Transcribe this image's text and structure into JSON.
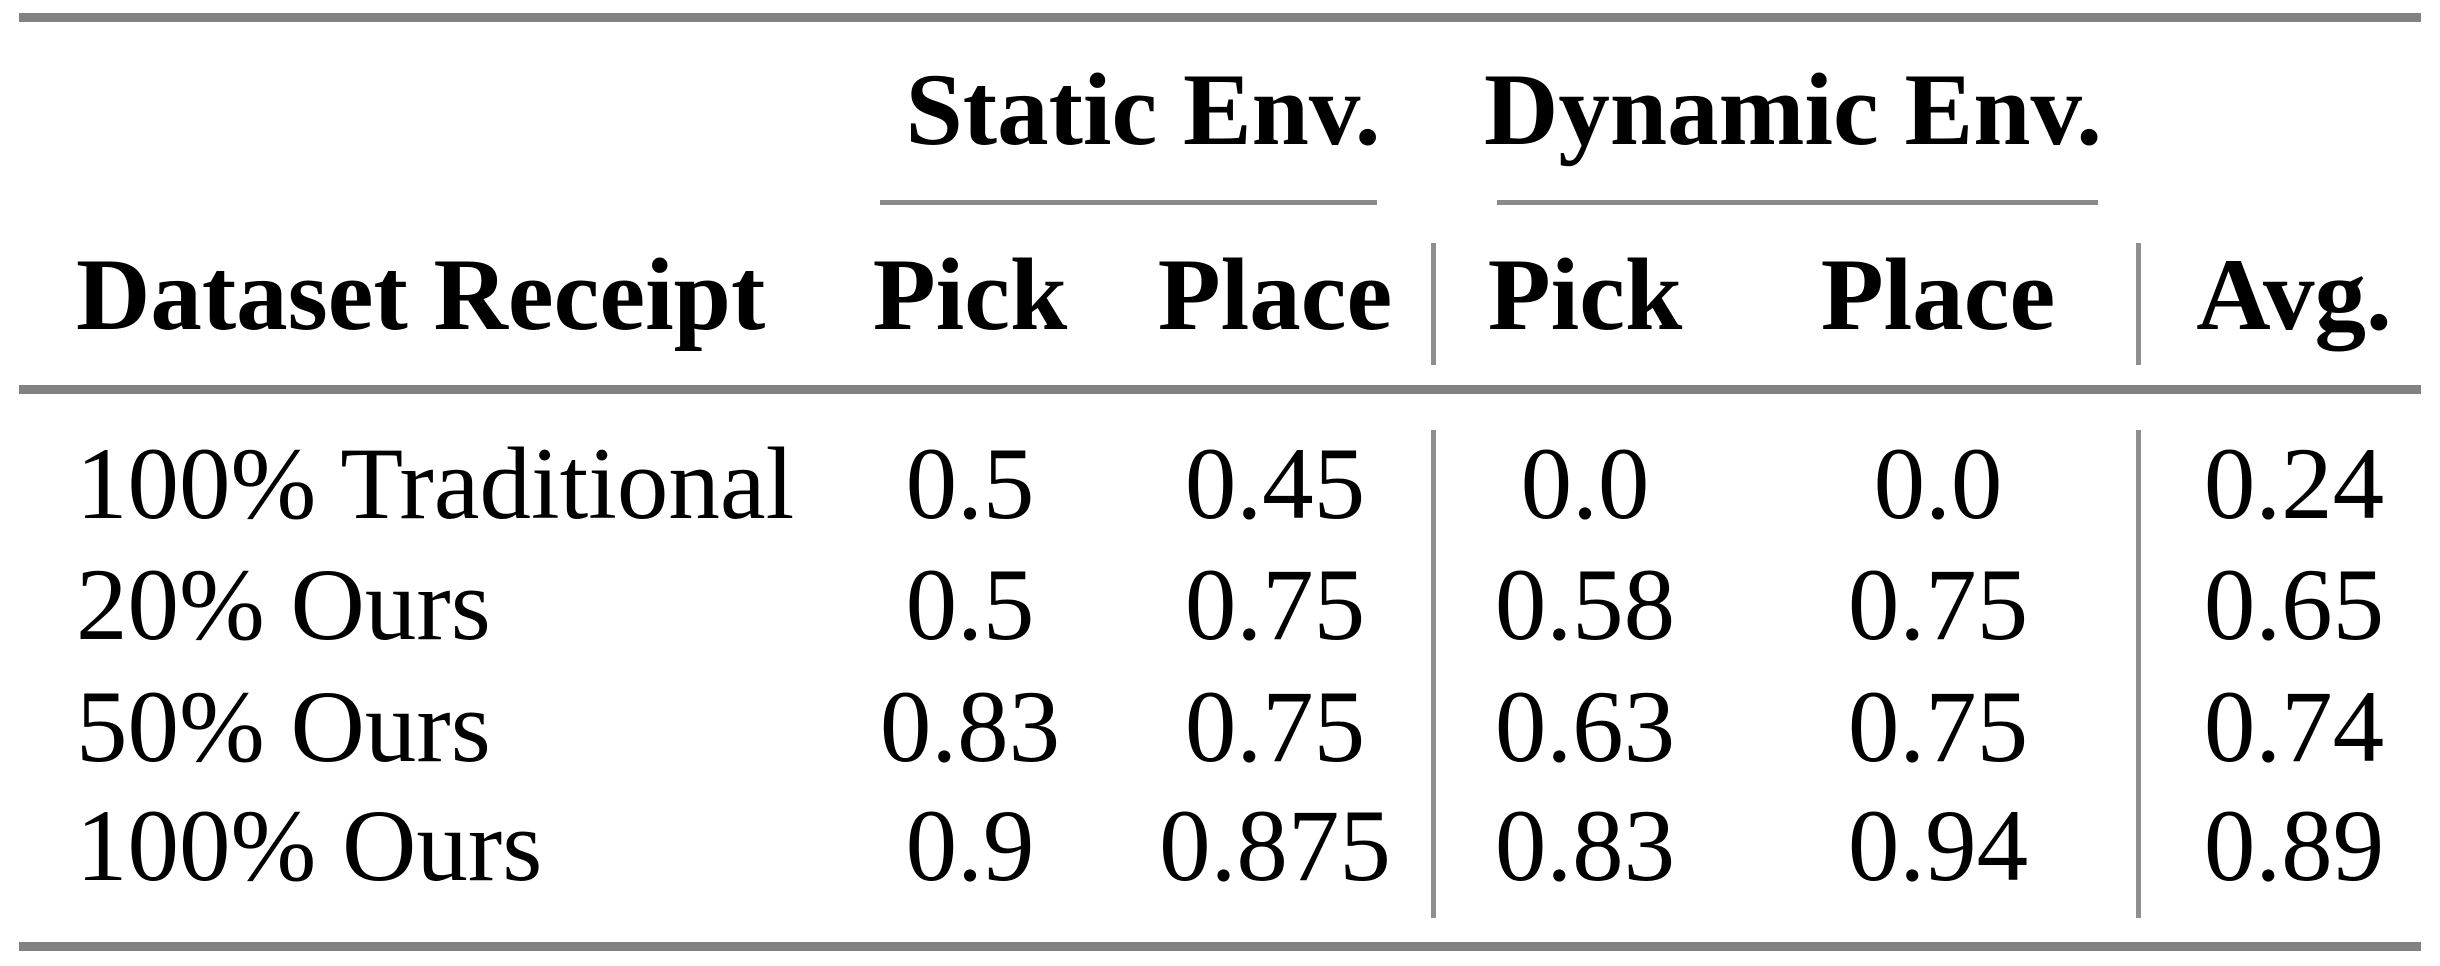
{
  "table": {
    "group_headers": {
      "static": "Static Env.",
      "dynamic": "Dynamic Env."
    },
    "column_headers": {
      "dataset": "Dataset Receipt",
      "static_pick": "Pick",
      "static_place": "Place",
      "dynamic_pick": "Pick",
      "dynamic_place": "Place",
      "avg": "Avg."
    },
    "rows": [
      {
        "dataset": "100% Traditional",
        "static_pick": "0.5",
        "static_place": "0.45",
        "dynamic_pick": "0.0",
        "dynamic_place": "0.0",
        "avg": "0.24"
      },
      {
        "dataset": "20% Ours",
        "static_pick": "0.5",
        "static_place": "0.75",
        "dynamic_pick": "0.58",
        "dynamic_place": "0.75",
        "avg": "0.65"
      },
      {
        "dataset": "50% Ours",
        "static_pick": "0.83",
        "static_place": "0.75",
        "dynamic_pick": "0.63",
        "dynamic_place": "0.75",
        "avg": "0.74"
      },
      {
        "dataset": "100% Ours",
        "static_pick": "0.9",
        "static_place": "0.875",
        "dynamic_pick": "0.83",
        "dynamic_place": "0.94",
        "avg": "0.89"
      }
    ],
    "colors": {
      "thick_rule": "#828282",
      "thin_rule": "#8a8a8a",
      "vertical_rule": "#8f8f8f",
      "text": "#000000",
      "background": "#ffffff"
    }
  }
}
